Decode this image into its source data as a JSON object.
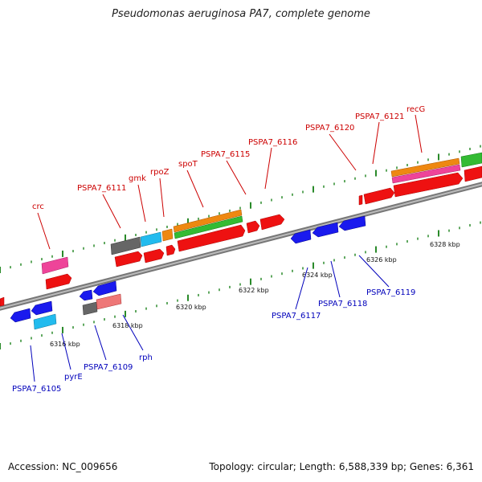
{
  "title": "Pseudomonas aeruginosa PA7, complete genome",
  "footer": {
    "accession": "Accession: NC_009656",
    "summary": "Topology: circular; Length: 6,588,339 bp; Genes: 6,361"
  },
  "colors": {
    "backbone": "#888888",
    "tick": "#2a8a2a",
    "top_label": "#cc0000",
    "bottom_label": "#0000bb",
    "red": "#ee1111",
    "blue": "#1a1aee",
    "cyan": "#22bbee",
    "gray": "#666666",
    "pink": "#ee4499",
    "salmon": "#ee7777",
    "orange": "#ee8811",
    "green": "#33bb33"
  },
  "scale_labels": [
    "6316 kbp",
    "6318 kbp",
    "6320 kbp",
    "6322 kbp",
    "6324 kbp",
    "6326 kbp",
    "6328 kbp"
  ],
  "top_labels": [
    "crc",
    "PSPA7_6111",
    "gmk",
    "rpoZ",
    "spoT",
    "PSPA7_6115",
    "PSPA7_6116",
    "PSPA7_6120",
    "PSPA7_6121",
    "recG"
  ],
  "bottom_labels": [
    "PSPA7_6105",
    "pyrE",
    "PSPA7_6109",
    "rph",
    "PSPA7_6117",
    "PSPA7_6118",
    "PSPA7_6119"
  ]
}
